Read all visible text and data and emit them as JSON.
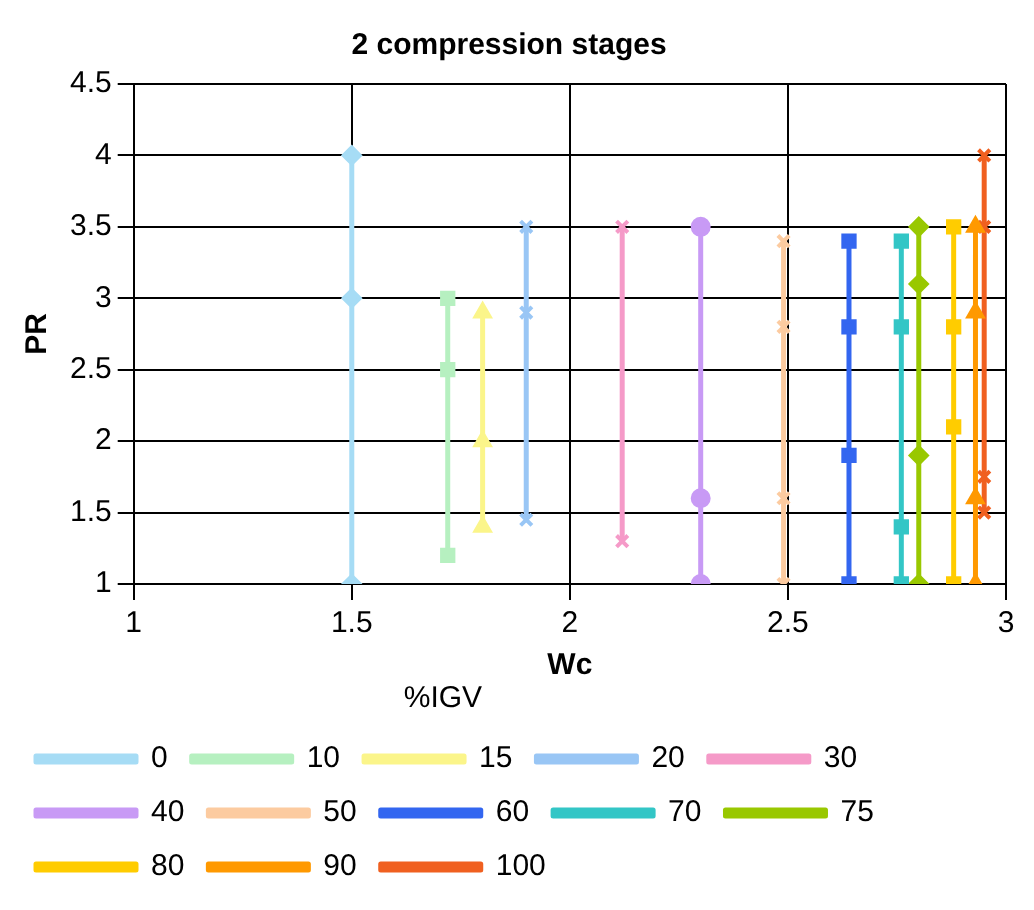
{
  "chart_data": {
    "type": "line",
    "title": "2 compression stages",
    "xlabel": "Wc",
    "ylabel": "PR",
    "legend_title": "%IGV",
    "legend": "bottom",
    "grid": true,
    "line_style": "solid",
    "xlim": [
      1,
      3
    ],
    "xticks": [
      1,
      1.5,
      2,
      2.5,
      3
    ],
    "ylim": [
      1,
      4.5
    ],
    "yticks": [
      1,
      1.5,
      2,
      2.5,
      3,
      3.5,
      4,
      4.5
    ],
    "series": [
      {
        "name": "0",
        "color": "#a6dcf5",
        "marker": "diamond",
        "x": [
          1.5,
          1.5,
          1.5
        ],
        "values": [
          4,
          3,
          1
        ]
      },
      {
        "name": "10",
        "color": "#b6f0c0",
        "marker": "square",
        "x": [
          1.72,
          1.72,
          1.72
        ],
        "values": [
          3,
          2.5,
          1.2
        ]
      },
      {
        "name": "15",
        "color": "#fbf58a",
        "marker": "triangle",
        "x": [
          1.8,
          1.8,
          1.8
        ],
        "values": [
          2.9,
          2,
          1.4
        ]
      },
      {
        "name": "20",
        "color": "#99c6f5",
        "marker": "cross",
        "x": [
          1.9,
          1.9,
          1.9
        ],
        "values": [
          3.5,
          2.9,
          1.45
        ]
      },
      {
        "name": "30",
        "color": "#f59ac8",
        "marker": "cross",
        "x": [
          2.12,
          2.12
        ],
        "values": [
          3.5,
          1.3
        ]
      },
      {
        "name": "40",
        "color": "#c89af5",
        "marker": "circle",
        "x": [
          2.3,
          2.3,
          2.3
        ],
        "values": [
          3.5,
          1.6,
          1
        ]
      },
      {
        "name": "50",
        "color": "#fccba0",
        "marker": "cross",
        "x": [
          2.49,
          2.49,
          2.49,
          2.49
        ],
        "values": [
          3.4,
          2.8,
          1.6,
          1
        ]
      },
      {
        "name": "60",
        "color": "#3366f0",
        "marker": "square",
        "x": [
          2.64,
          2.64,
          2.64,
          2.64
        ],
        "values": [
          3.4,
          2.8,
          1.9,
          1
        ]
      },
      {
        "name": "70",
        "color": "#33c6c6",
        "marker": "square",
        "x": [
          2.76,
          2.76,
          2.76,
          2.76
        ],
        "values": [
          3.4,
          2.8,
          1.4,
          1
        ]
      },
      {
        "name": "75",
        "color": "#99c800",
        "marker": "diamond",
        "x": [
          2.8,
          2.8,
          2.8,
          2.8
        ],
        "values": [
          3.5,
          3.1,
          1.9,
          1
        ]
      },
      {
        "name": "80",
        "color": "#ffcc00",
        "marker": "square",
        "x": [
          2.88,
          2.88,
          2.88,
          2.88
        ],
        "values": [
          3.5,
          2.8,
          2.1,
          1
        ]
      },
      {
        "name": "90",
        "color": "#ff9900",
        "marker": "triangle",
        "x": [
          2.93,
          2.93,
          2.93,
          2.93
        ],
        "values": [
          3.5,
          2.9,
          1.6,
          1
        ]
      },
      {
        "name": "100",
        "color": "#f06020",
        "marker": "cross",
        "x": [
          2.95,
          2.95,
          2.95,
          2.95
        ],
        "values": [
          4,
          3.5,
          1.75,
          1.5
        ]
      }
    ]
  }
}
